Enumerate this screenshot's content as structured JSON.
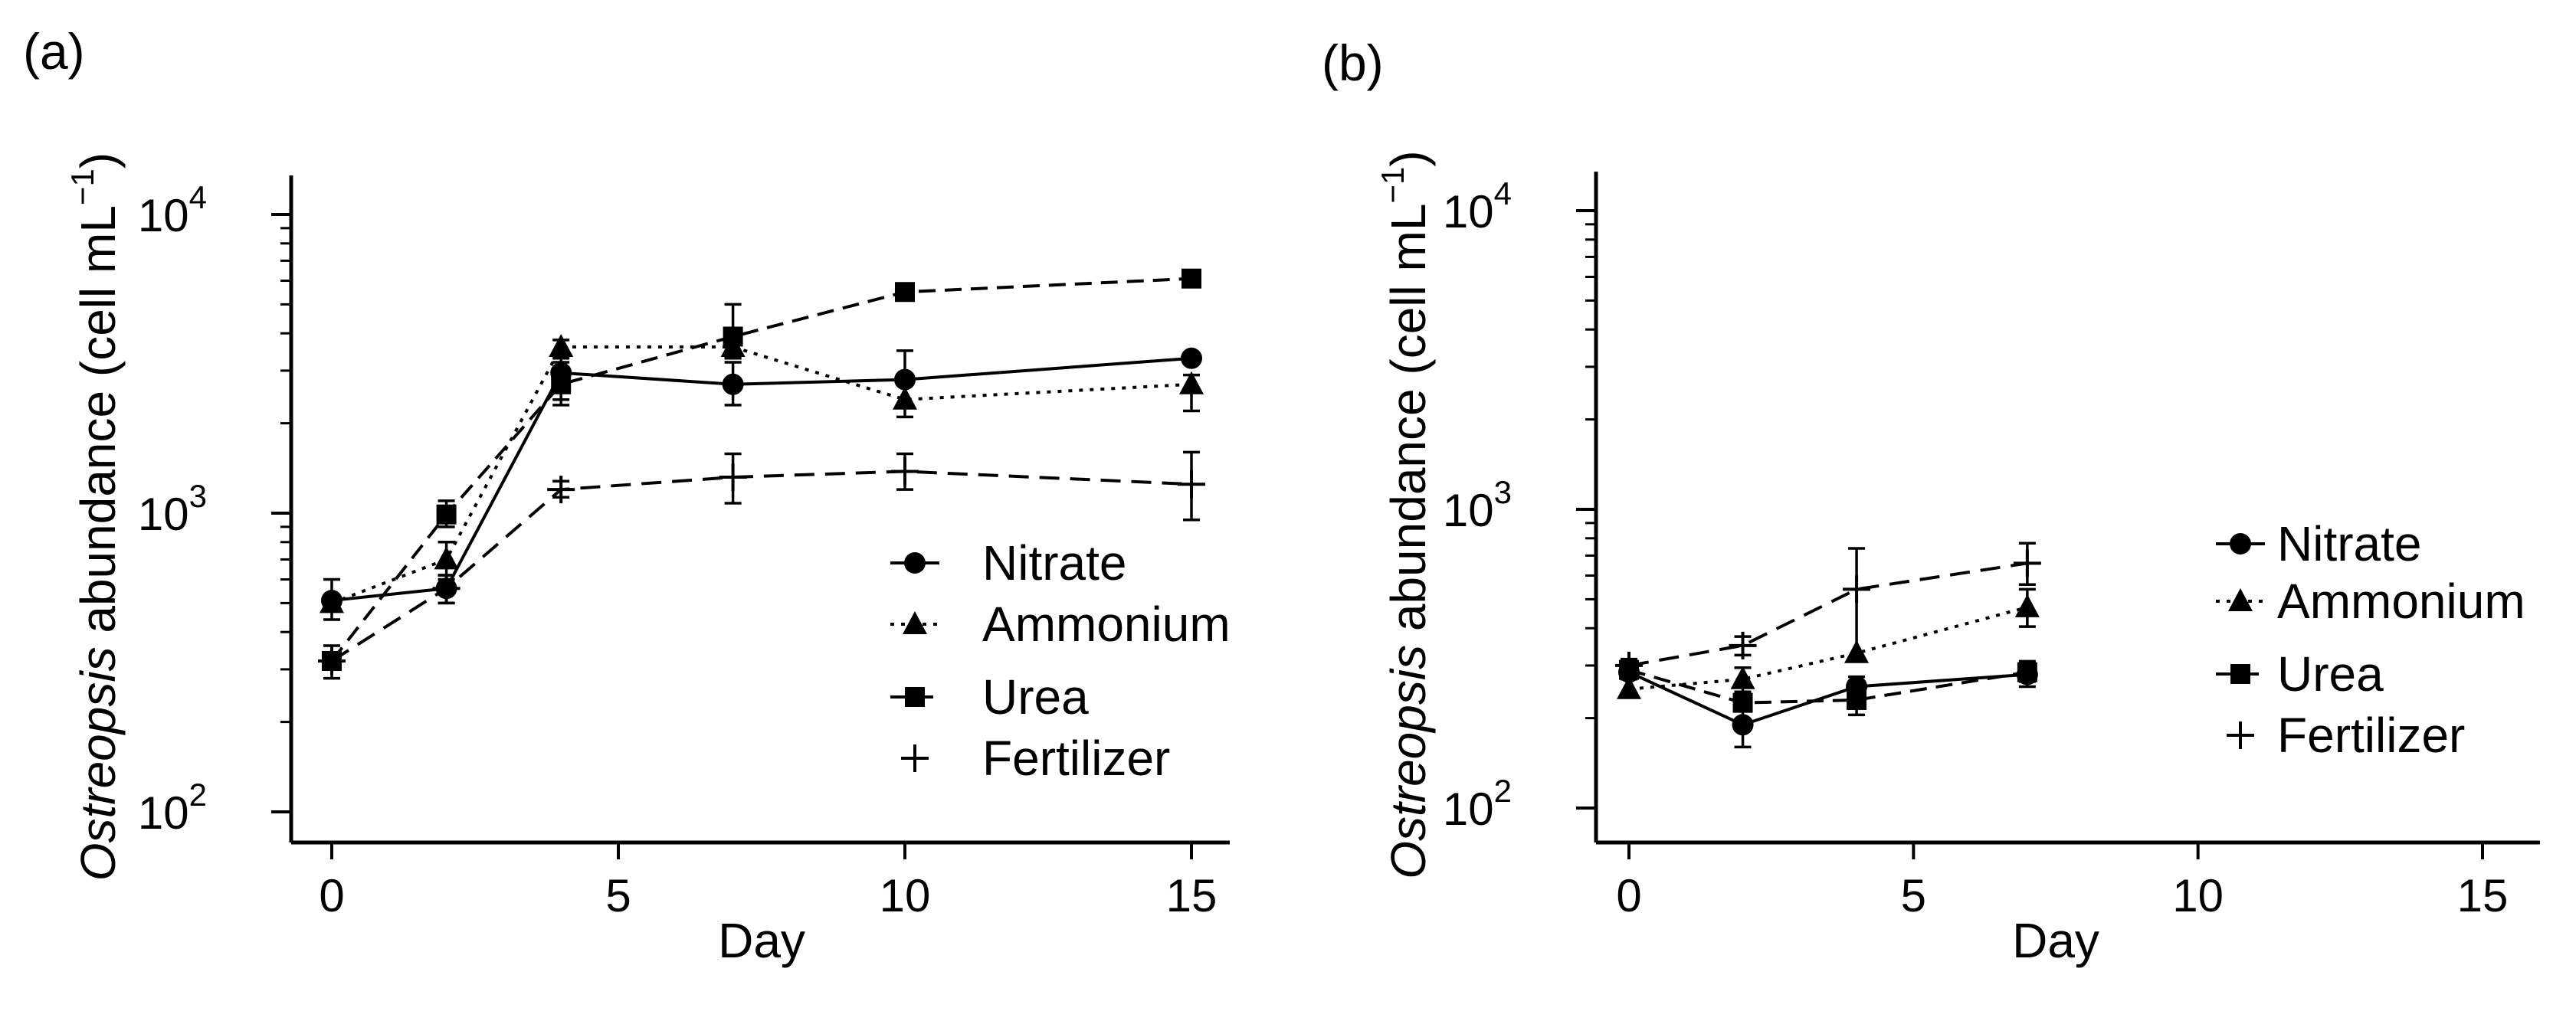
{
  "chart_data": [
    {
      "type": "line",
      "panel_label": "(a)",
      "xlabel": "Day",
      "ylabel_italic": "Ostreopsis",
      "ylabel_rest": " abundance (cell mL",
      "ylabel_sup": "−1",
      "ylabel_close": ")",
      "xlim": [
        -0.7,
        15.7
      ],
      "xticks": [
        0,
        5,
        10,
        15
      ],
      "xtick_labels": [
        "0",
        "5",
        "10",
        "15"
      ],
      "yscale": "log",
      "ylim": [
        80,
        13500
      ],
      "yticks": [
        100,
        1000,
        10000
      ],
      "ytick_base": "10",
      "ytick_exps": [
        "2",
        "3",
        "4"
      ],
      "series": [
        {
          "name": "Nitrate",
          "marker": "circle",
          "linestyle": "solid",
          "x": [
            0,
            2,
            4,
            7,
            10,
            15
          ],
          "y": [
            510,
            560,
            2950,
            2700,
            2800,
            3300
          ],
          "err_low": [
            440,
            500,
            2400,
            2300,
            2300,
            3300
          ],
          "err_high": [
            600,
            620,
            3400,
            3200,
            3500,
            3300
          ]
        },
        {
          "name": "Ammonium",
          "marker": "triangle",
          "linestyle": "dotted",
          "x": [
            0,
            2,
            4,
            7,
            10,
            15
          ],
          "y": [
            500,
            700,
            3600,
            3600,
            2400,
            2700
          ],
          "err_low": [
            500,
            600,
            3300,
            3300,
            2100,
            2200
          ],
          "err_high": [
            500,
            800,
            3800,
            3900,
            2700,
            2900
          ]
        },
        {
          "name": "Urea",
          "marker": "square",
          "linestyle": "dashed",
          "x": [
            0,
            2,
            4,
            7,
            10,
            15
          ],
          "y": [
            320,
            990,
            2700,
            3900,
            5500,
            6100
          ],
          "err_low": [
            320,
            900,
            2300,
            3300,
            5500,
            6100
          ],
          "err_high": [
            320,
            1100,
            3200,
            5000,
            5500,
            6100
          ]
        },
        {
          "name": "Fertilizer",
          "marker": "plus",
          "linestyle": "longdash",
          "x": [
            0,
            2,
            4,
            7,
            10,
            15
          ],
          "y": [
            320,
            560,
            1200,
            1320,
            1380,
            1250
          ],
          "err_low": [
            280,
            500,
            1130,
            1080,
            1200,
            950
          ],
          "err_high": [
            360,
            620,
            1280,
            1580,
            1580,
            1600
          ]
        }
      ]
    },
    {
      "type": "line",
      "panel_label": "(b)",
      "xlabel": "Day",
      "ylabel_italic": "Ostreopsis",
      "ylabel_rest": " abundance (cell mL",
      "ylabel_sup": "−1",
      "ylabel_close": ")",
      "xlim": [
        -0.7,
        15.7
      ],
      "xticks": [
        0,
        5,
        10,
        15
      ],
      "xtick_labels": [
        "0",
        "5",
        "10",
        "15"
      ],
      "yscale": "log",
      "ylim": [
        80,
        13500
      ],
      "yticks": [
        100,
        1000,
        10000
      ],
      "ytick_base": "10",
      "ytick_exps": [
        "2",
        "3",
        "4"
      ],
      "series": [
        {
          "name": "Nitrate",
          "marker": "circle",
          "linestyle": "solid",
          "x": [
            0,
            2,
            4,
            7
          ],
          "y": [
            285,
            190,
            255,
            280
          ],
          "err_low": [
            270,
            160,
            225,
            255
          ],
          "err_high": [
            300,
            215,
            275,
            300
          ]
        },
        {
          "name": "Ammonium",
          "marker": "triangle",
          "linestyle": "dotted",
          "x": [
            0,
            2,
            4,
            7
          ],
          "y": [
            250,
            270,
            330,
            470
          ],
          "err_low": [
            250,
            245,
            330,
            405
          ],
          "err_high": [
            250,
            295,
            330,
            540
          ]
        },
        {
          "name": "Urea",
          "marker": "square",
          "linestyle": "dashed",
          "x": [
            0,
            2,
            4,
            7
          ],
          "y": [
            290,
            225,
            230,
            285
          ],
          "err_low": [
            290,
            225,
            205,
            265
          ],
          "err_high": [
            290,
            225,
            255,
            310
          ]
        },
        {
          "name": "Fertilizer",
          "marker": "plus",
          "linestyle": "longdash",
          "x": [
            0,
            2,
            4,
            7
          ],
          "y": [
            300,
            350,
            540,
            660
          ],
          "err_low": [
            280,
            325,
            320,
            560
          ],
          "err_high": [
            315,
            375,
            740,
            770
          ]
        }
      ]
    }
  ]
}
